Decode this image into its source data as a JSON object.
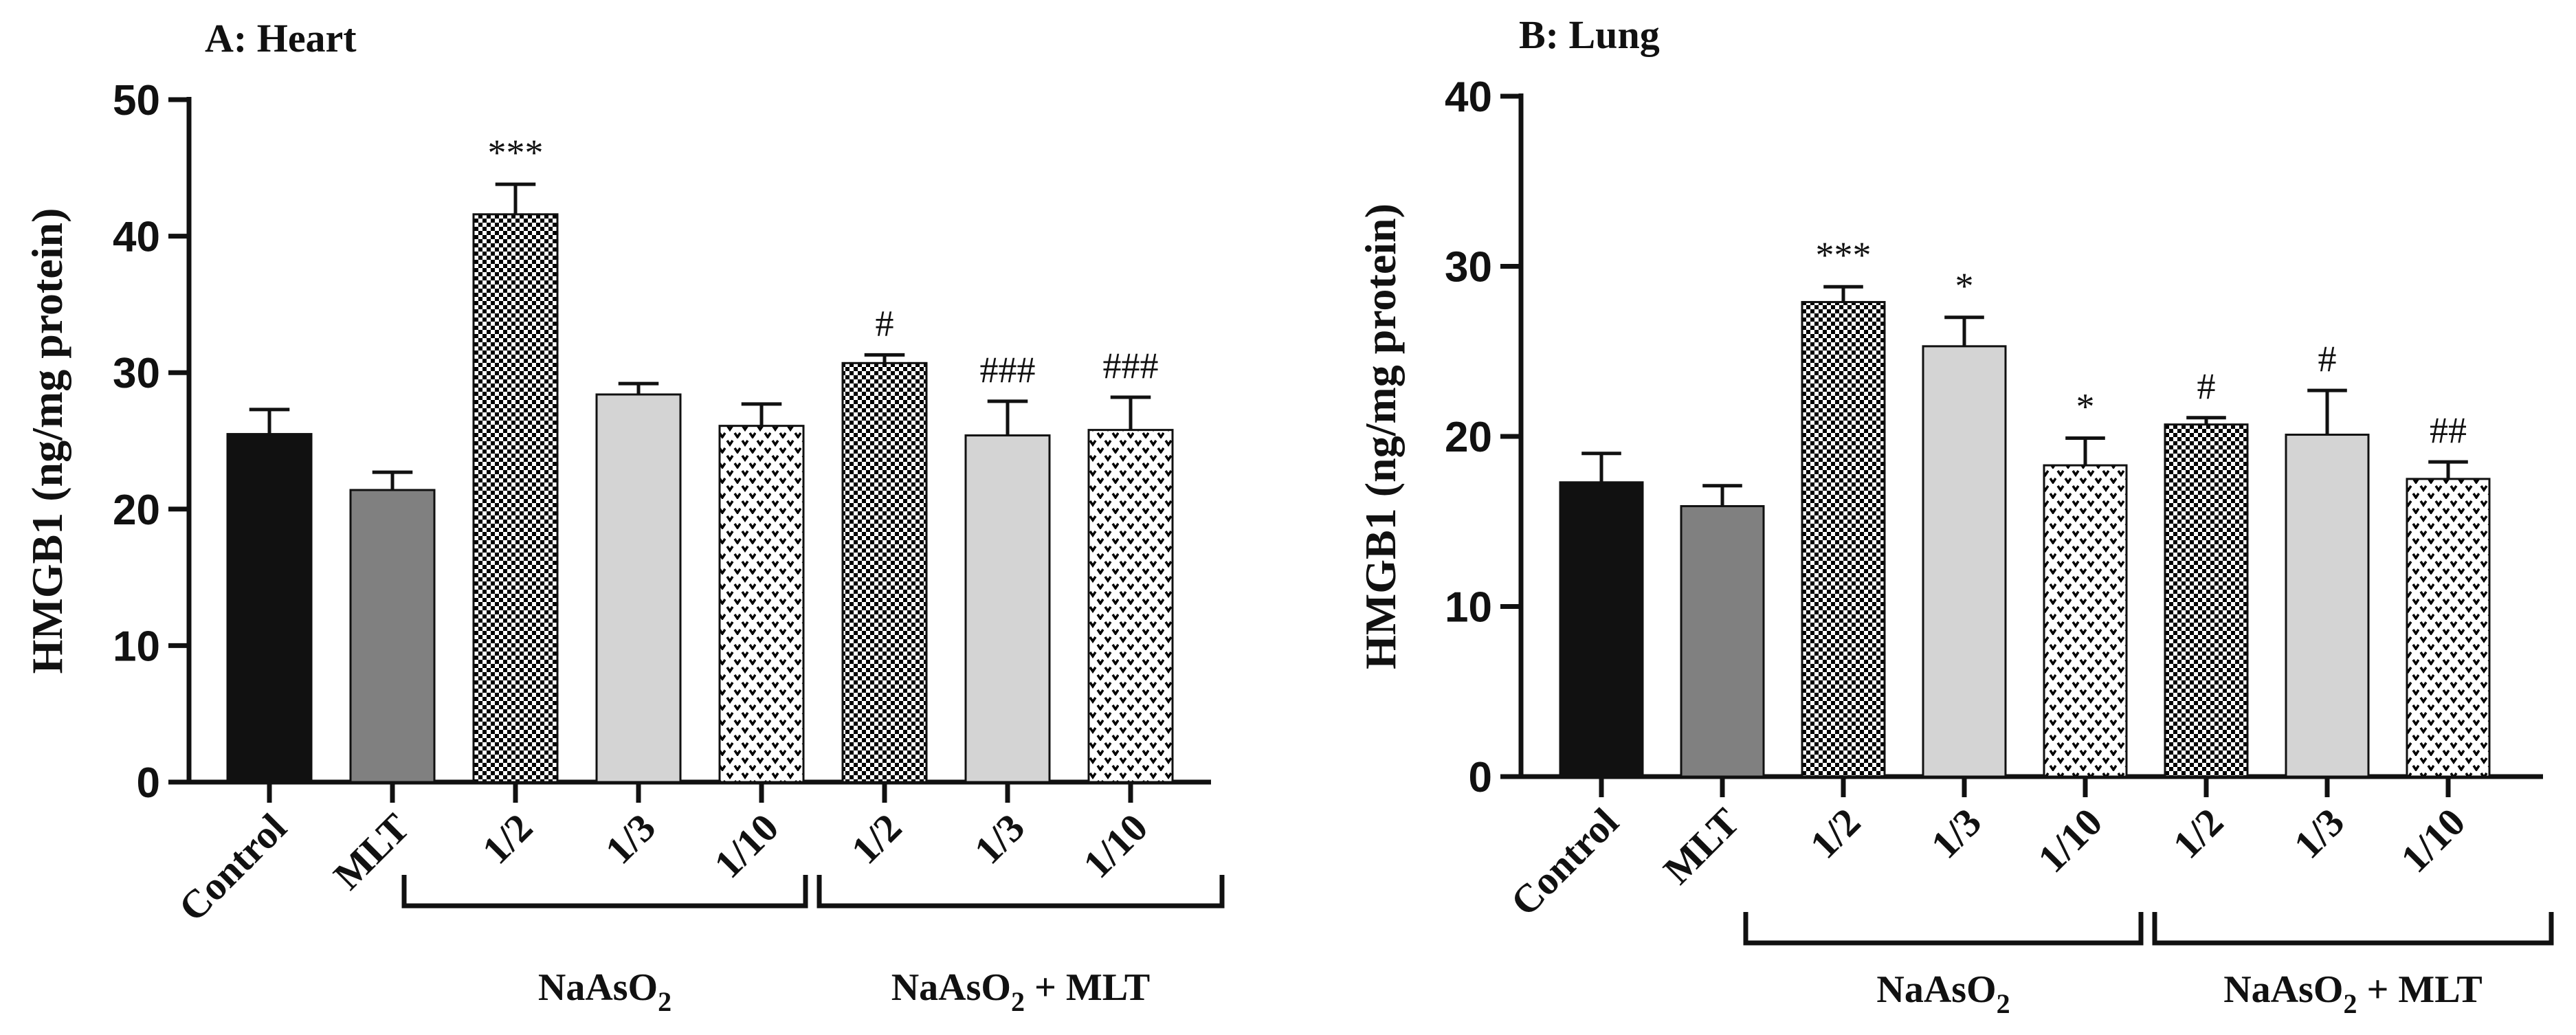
{
  "chart_data": [
    {
      "type": "bar",
      "panel": "A",
      "title": "A: Heart",
      "ylabel": "HMGB1 (ng/mg protein)",
      "xlabel": "",
      "ylim": [
        0,
        50
      ],
      "yticks": [
        0,
        10,
        20,
        30,
        40,
        50
      ],
      "categories": [
        "Control",
        "MLT",
        "1/2",
        "1/3",
        "1/10",
        "1/2",
        "1/3",
        "1/10"
      ],
      "values": [
        25.5,
        21.4,
        41.6,
        28.4,
        26.1,
        30.7,
        25.4,
        25.8
      ],
      "errors": [
        1.8,
        1.3,
        2.2,
        0.8,
        1.6,
        0.6,
        2.5,
        2.4
      ],
      "significance": [
        "",
        "",
        "***",
        "",
        "",
        "#",
        "###",
        "###"
      ],
      "groups": [
        {
          "label": "NaAsO",
          "subscript": "2",
          "suffix": "",
          "categories": [
            2,
            4
          ]
        },
        {
          "label": "NaAsO",
          "subscript": "2",
          "suffix": " + MLT",
          "categories": [
            5,
            7
          ]
        }
      ]
    },
    {
      "type": "bar",
      "panel": "B",
      "title": "B: Lung",
      "ylabel": "HMGB1 (ng/mg protein)",
      "xlabel": "",
      "ylim": [
        0,
        40
      ],
      "yticks": [
        0,
        10,
        20,
        30,
        40
      ],
      "categories": [
        "Control",
        "MLT",
        "1/2",
        "1/3",
        "1/10",
        "1/2",
        "1/3",
        "1/10"
      ],
      "values": [
        17.3,
        15.9,
        27.9,
        25.3,
        18.3,
        20.7,
        20.1,
        17.5
      ],
      "errors": [
        1.7,
        1.2,
        0.9,
        1.7,
        1.6,
        0.4,
        2.6,
        1.0
      ],
      "significance": [
        "",
        "",
        "***",
        "*",
        "*",
        "#",
        "#",
        "##"
      ],
      "groups": [
        {
          "label": "NaAsO",
          "subscript": "2",
          "suffix": "",
          "categories": [
            2,
            4
          ]
        },
        {
          "label": "NaAsO",
          "subscript": "2",
          "suffix": " + MLT",
          "categories": [
            5,
            7
          ]
        }
      ]
    }
  ],
  "colors": {
    "axis": "#111111",
    "control": "#111111",
    "mlt": "#808080",
    "light": "#d4d4d4",
    "checker": "#000000",
    "dots": "#000000"
  },
  "bar_fills": [
    "control",
    "mlt",
    "checker",
    "light",
    "dots",
    "checker",
    "light",
    "dots"
  ]
}
